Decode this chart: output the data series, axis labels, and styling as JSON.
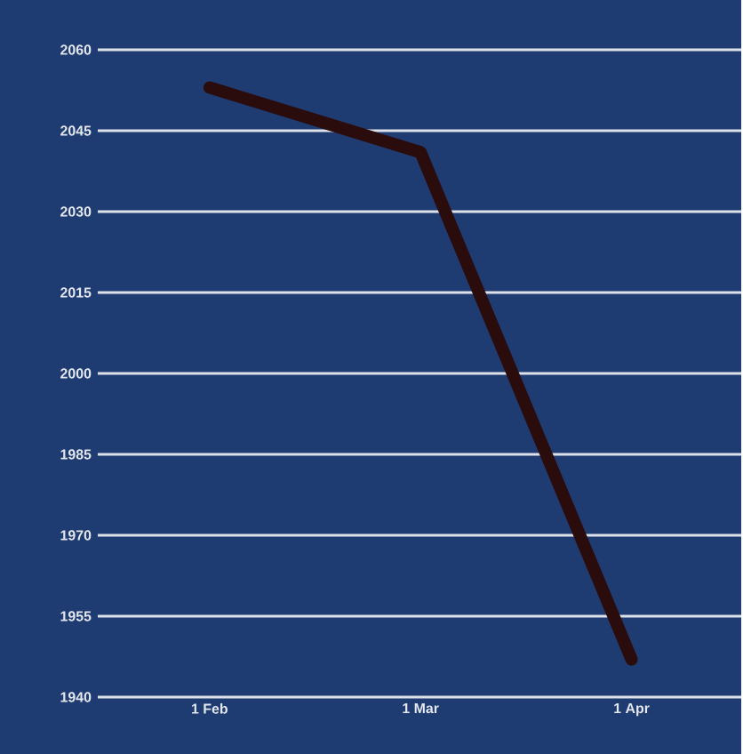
{
  "chart_data": {
    "type": "line",
    "categories": [
      "1 Feb",
      "1 Mar",
      "1 Apr"
    ],
    "series": [
      {
        "color": "#2a0c0c",
        "values": [
          2053,
          2041,
          1947
        ]
      }
    ],
    "ylim": [
      1940,
      2060
    ],
    "yticks": [
      1940,
      1955,
      1970,
      1985,
      2000,
      2015,
      2030,
      2045,
      2060
    ],
    "grid": "y",
    "marker": "none",
    "line_style": "solid"
  }
}
